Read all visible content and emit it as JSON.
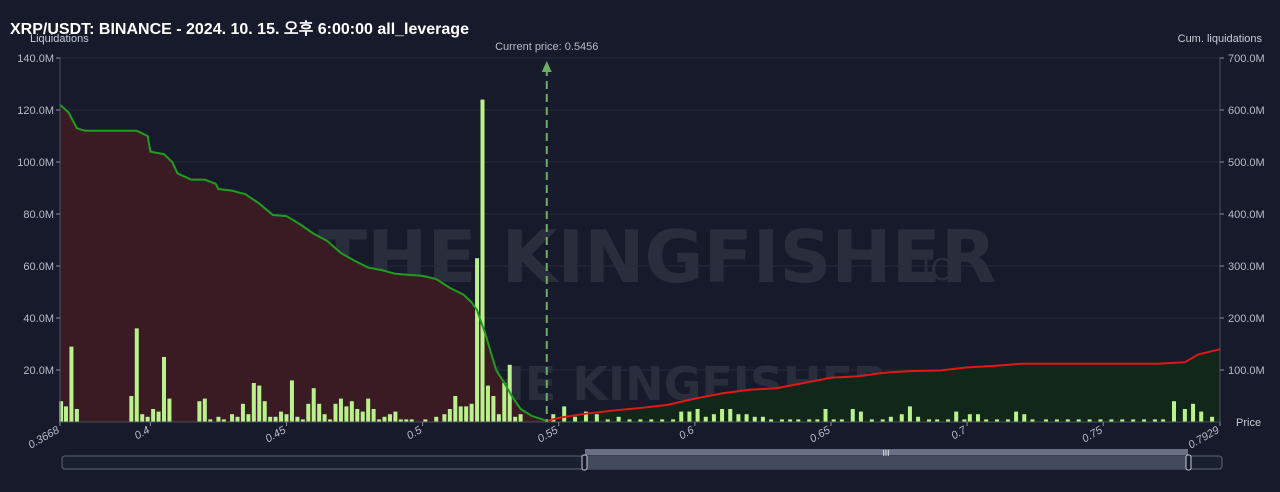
{
  "chart_data": {
    "type": "bar",
    "title": "XRP/USDT: BINANCE - 2024. 10. 15. 오후 6:00:00 all_leverage",
    "ylabel_left": "Liquidations",
    "ylabel_right": "Cum. liquidations",
    "xlabel": "Price",
    "current_price_label": "Current price: 0.5456",
    "current_price": 0.5456,
    "x_range": [
      0.3668,
      0.7929
    ],
    "y_left_range": [
      0,
      140
    ],
    "y_right_range": [
      0,
      700
    ],
    "y_left_ticks": [
      "20.0M",
      "40.0M",
      "60.0M",
      "80.0M",
      "100.0M",
      "120.0M",
      "140.0M"
    ],
    "y_left_tick_values": [
      20,
      40,
      60,
      80,
      100,
      120,
      140
    ],
    "y_right_ticks": [
      "100.0M",
      "200.0M",
      "300.0M",
      "400.0M",
      "500.0M",
      "600.0M",
      "700.0M"
    ],
    "y_right_tick_values": [
      100,
      200,
      300,
      400,
      500,
      600,
      700
    ],
    "x_ticks": [
      "0.3668",
      "0.4",
      "0.45",
      "0.5",
      "0.55",
      "0.6",
      "0.65",
      "0.7",
      "0.75",
      "0.7929"
    ],
    "x_tick_values": [
      0.3668,
      0.4,
      0.45,
      0.5,
      0.55,
      0.6,
      0.65,
      0.7,
      0.75,
      0.7929
    ],
    "bars": [
      [
        0.3672,
        8
      ],
      [
        0.369,
        6
      ],
      [
        0.371,
        29
      ],
      [
        0.373,
        5
      ],
      [
        0.393,
        10
      ],
      [
        0.395,
        36
      ],
      [
        0.397,
        3
      ],
      [
        0.399,
        2
      ],
      [
        0.401,
        5
      ],
      [
        0.403,
        4
      ],
      [
        0.405,
        25
      ],
      [
        0.407,
        9
      ],
      [
        0.418,
        8
      ],
      [
        0.42,
        9
      ],
      [
        0.422,
        1
      ],
      [
        0.425,
        2
      ],
      [
        0.427,
        1
      ],
      [
        0.43,
        3
      ],
      [
        0.432,
        2
      ],
      [
        0.434,
        7
      ],
      [
        0.436,
        3
      ],
      [
        0.438,
        15
      ],
      [
        0.44,
        14
      ],
      [
        0.442,
        8
      ],
      [
        0.444,
        2
      ],
      [
        0.446,
        2
      ],
      [
        0.448,
        4
      ],
      [
        0.45,
        3
      ],
      [
        0.452,
        16
      ],
      [
        0.454,
        2
      ],
      [
        0.456,
        1
      ],
      [
        0.458,
        7
      ],
      [
        0.46,
        13
      ],
      [
        0.462,
        7
      ],
      [
        0.464,
        3
      ],
      [
        0.466,
        1
      ],
      [
        0.468,
        7
      ],
      [
        0.47,
        9
      ],
      [
        0.472,
        6
      ],
      [
        0.474,
        8
      ],
      [
        0.476,
        5
      ],
      [
        0.478,
        4
      ],
      [
        0.48,
        9
      ],
      [
        0.482,
        5
      ],
      [
        0.484,
        1
      ],
      [
        0.486,
        2
      ],
      [
        0.488,
        3
      ],
      [
        0.49,
        4
      ],
      [
        0.492,
        1
      ],
      [
        0.494,
        1
      ],
      [
        0.496,
        1
      ],
      [
        0.501,
        1
      ],
      [
        0.505,
        2
      ],
      [
        0.508,
        3
      ],
      [
        0.51,
        5
      ],
      [
        0.512,
        10
      ],
      [
        0.514,
        6
      ],
      [
        0.516,
        6
      ],
      [
        0.518,
        7
      ],
      [
        0.52,
        63
      ],
      [
        0.522,
        124
      ],
      [
        0.524,
        14
      ],
      [
        0.526,
        10
      ],
      [
        0.528,
        3
      ],
      [
        0.53,
        15
      ],
      [
        0.532,
        22
      ],
      [
        0.534,
        2
      ],
      [
        0.536,
        3
      ],
      [
        0.548,
        3
      ],
      [
        0.552,
        6
      ],
      [
        0.556,
        2
      ],
      [
        0.56,
        4
      ],
      [
        0.564,
        3
      ],
      [
        0.568,
        1
      ],
      [
        0.572,
        2
      ],
      [
        0.576,
        1
      ],
      [
        0.58,
        1
      ],
      [
        0.584,
        1
      ],
      [
        0.588,
        1
      ],
      [
        0.592,
        1
      ],
      [
        0.595,
        4
      ],
      [
        0.598,
        4
      ],
      [
        0.601,
        5
      ],
      [
        0.604,
        2
      ],
      [
        0.607,
        3
      ],
      [
        0.61,
        5
      ],
      [
        0.613,
        5
      ],
      [
        0.616,
        3
      ],
      [
        0.619,
        3
      ],
      [
        0.622,
        2
      ],
      [
        0.625,
        2
      ],
      [
        0.628,
        1
      ],
      [
        0.632,
        1
      ],
      [
        0.635,
        1
      ],
      [
        0.638,
        1
      ],
      [
        0.642,
        1
      ],
      [
        0.645,
        1
      ],
      [
        0.648,
        5
      ],
      [
        0.651,
        1
      ],
      [
        0.654,
        1
      ],
      [
        0.658,
        5
      ],
      [
        0.661,
        4
      ],
      [
        0.665,
        1
      ],
      [
        0.669,
        1
      ],
      [
        0.672,
        2
      ],
      [
        0.676,
        3
      ],
      [
        0.679,
        6
      ],
      [
        0.682,
        2
      ],
      [
        0.686,
        1
      ],
      [
        0.689,
        1
      ],
      [
        0.693,
        1
      ],
      [
        0.696,
        4
      ],
      [
        0.699,
        1
      ],
      [
        0.701,
        3
      ],
      [
        0.704,
        3
      ],
      [
        0.707,
        1
      ],
      [
        0.711,
        1
      ],
      [
        0.715,
        1
      ],
      [
        0.718,
        4
      ],
      [
        0.721,
        3
      ],
      [
        0.724,
        1
      ],
      [
        0.729,
        1
      ],
      [
        0.733,
        1
      ],
      [
        0.737,
        1
      ],
      [
        0.741,
        1
      ],
      [
        0.745,
        1
      ],
      [
        0.749,
        1
      ],
      [
        0.753,
        1
      ],
      [
        0.757,
        1
      ],
      [
        0.761,
        1
      ],
      [
        0.765,
        1
      ],
      [
        0.769,
        1
      ],
      [
        0.772,
        1
      ],
      [
        0.776,
        8
      ],
      [
        0.78,
        5
      ],
      [
        0.783,
        7
      ],
      [
        0.786,
        4
      ],
      [
        0.79,
        2
      ]
    ],
    "cum_short_series": [
      [
        0.3668,
        610
      ],
      [
        0.37,
        595
      ],
      [
        0.373,
        565
      ],
      [
        0.376,
        560
      ],
      [
        0.38,
        560
      ],
      [
        0.385,
        560
      ],
      [
        0.395,
        560
      ],
      [
        0.399,
        550
      ],
      [
        0.4,
        520
      ],
      [
        0.405,
        515
      ],
      [
        0.408,
        500
      ],
      [
        0.41,
        478
      ],
      [
        0.415,
        466
      ],
      [
        0.42,
        466
      ],
      [
        0.424,
        458
      ],
      [
        0.425,
        448
      ],
      [
        0.43,
        445
      ],
      [
        0.435,
        438
      ],
      [
        0.44,
        420
      ],
      [
        0.445,
        398
      ],
      [
        0.45,
        396
      ],
      [
        0.455,
        380
      ],
      [
        0.46,
        362
      ],
      [
        0.465,
        348
      ],
      [
        0.47,
        325
      ],
      [
        0.475,
        310
      ],
      [
        0.48,
        297
      ],
      [
        0.485,
        292
      ],
      [
        0.49,
        285
      ],
      [
        0.495,
        283
      ],
      [
        0.5,
        281
      ],
      [
        0.505,
        275
      ],
      [
        0.51,
        258
      ],
      [
        0.515,
        245
      ],
      [
        0.518,
        230
      ],
      [
        0.52,
        215
      ],
      [
        0.523,
        170
      ],
      [
        0.527,
        100
      ],
      [
        0.53,
        75
      ],
      [
        0.533,
        48
      ],
      [
        0.536,
        25
      ],
      [
        0.54,
        12
      ],
      [
        0.5456,
        2
      ]
    ],
    "cum_long_series": [
      [
        0.5456,
        2
      ],
      [
        0.55,
        8
      ],
      [
        0.56,
        16
      ],
      [
        0.57,
        22
      ],
      [
        0.58,
        27
      ],
      [
        0.59,
        33
      ],
      [
        0.6,
        45
      ],
      [
        0.61,
        55
      ],
      [
        0.62,
        62
      ],
      [
        0.63,
        65
      ],
      [
        0.64,
        75
      ],
      [
        0.645,
        80
      ],
      [
        0.65,
        85
      ],
      [
        0.66,
        88
      ],
      [
        0.67,
        95
      ],
      [
        0.68,
        98
      ],
      [
        0.69,
        99
      ],
      [
        0.7,
        105
      ],
      [
        0.71,
        108
      ],
      [
        0.72,
        112
      ],
      [
        0.73,
        112
      ],
      [
        0.74,
        112
      ],
      [
        0.75,
        112
      ],
      [
        0.76,
        112
      ],
      [
        0.77,
        112
      ],
      [
        0.78,
        115
      ],
      [
        0.785,
        130
      ],
      [
        0.7929,
        140
      ]
    ],
    "colors": {
      "background": "#161a2a",
      "bars": "#b9f28a",
      "short_line": "#1f9d1f",
      "short_fill": "#3a1b24",
      "long_line": "#e01818",
      "long_fill": "#112719",
      "current_price_line": "#6bb061",
      "grid": "#262b3b"
    },
    "grid": true
  },
  "watermark": {
    "text": "THE KINGFISHER",
    "suffix": ".IO"
  },
  "slider": {
    "handle_glyph": "III"
  }
}
